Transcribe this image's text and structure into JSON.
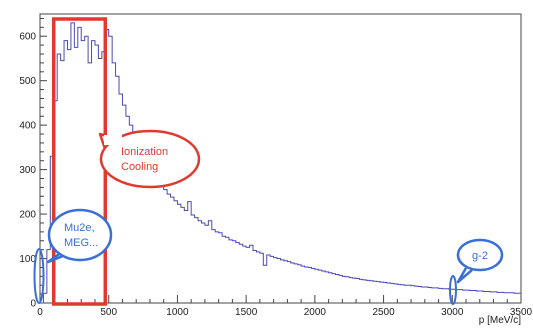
{
  "chart_data": {
    "type": "histogram",
    "xlabel": "p [MeV/c]",
    "ylabel": "",
    "xlim": [
      0,
      3500
    ],
    "ylim": [
      0,
      650
    ],
    "x_ticks": [
      0,
      500,
      1000,
      1500,
      2000,
      2500,
      3000,
      3500
    ],
    "y_ticks": [
      0,
      100,
      200,
      300,
      400,
      500,
      600
    ],
    "bin_width": 25,
    "series": [
      {
        "color": "#4a4ab8",
        "values": [
          0,
          22,
          120,
          330,
          455,
          560,
          545,
          590,
          570,
          630,
          575,
          620,
          590,
          600,
          540,
          590,
          580,
          550,
          565,
          615,
          600,
          540,
          510,
          470,
          445,
          420,
          400,
          385,
          365,
          345,
          330,
          320,
          300,
          290,
          275,
          265,
          255,
          245,
          238,
          230,
          222,
          215,
          208,
          228,
          198,
          192,
          185,
          180,
          175,
          185,
          165,
          160,
          158,
          150,
          148,
          142,
          140,
          136,
          132,
          128,
          125,
          130,
          118,
          115,
          112,
          85,
          108,
          105,
          102,
          100,
          97,
          95,
          93,
          90,
          88,
          86,
          83,
          81,
          80,
          78,
          76,
          74,
          72,
          70,
          68,
          66,
          64,
          62,
          60,
          59,
          57,
          56,
          55,
          53,
          52,
          51,
          50,
          49,
          48,
          47,
          46,
          45,
          44,
          43,
          42,
          41,
          40,
          40,
          39,
          38,
          37,
          36,
          36,
          35,
          34,
          34,
          33,
          32,
          32,
          31,
          31,
          30,
          30,
          29,
          29,
          28,
          28,
          27,
          27,
          26,
          26,
          25,
          25,
          24,
          24,
          23,
          23,
          23,
          22,
          22
        ]
      }
    ],
    "annotations": [
      {
        "text": "Ionization Cooling",
        "color": "#e03a2f",
        "x_range": [
          100,
          475
        ]
      },
      {
        "text": "Mu2e, MEG...",
        "color": "#3a6fd8",
        "x_range": [
          0,
          50
        ]
      },
      {
        "text": "g-2",
        "color": "#3a6fd8",
        "x_range": [
          2990,
          3020
        ]
      }
    ],
    "grid": false,
    "legend": "none"
  }
}
